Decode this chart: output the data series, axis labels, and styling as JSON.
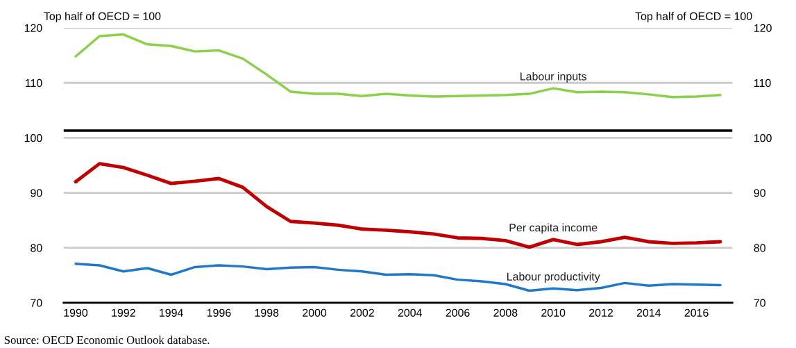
{
  "chart_data": {
    "type": "line",
    "ylabel": "Top half of OECD = 100",
    "y2label": "Top half of OECD = 100",
    "categories": [
      "1990",
      null,
      "1992",
      null,
      "1994",
      null,
      "1996",
      null,
      "1998",
      null,
      "2000",
      null,
      "2002",
      null,
      "2004",
      null,
      "2006",
      null,
      "2008",
      null,
      "2010",
      null,
      "2012",
      null,
      "2014",
      null,
      "2016",
      null
    ],
    "series": [
      {
        "name": "Labour inputs",
        "color": "#8cd04a",
        "values": [
          114.8,
          118.5,
          118.8,
          117.0,
          116.7,
          115.7,
          115.9,
          114.4,
          111.5,
          108.4,
          108.0,
          108.0,
          107.6,
          108.0,
          107.7,
          107.5,
          107.6,
          107.7,
          107.8,
          108.0,
          109.0,
          108.3,
          108.4,
          108.3,
          107.9,
          107.4,
          107.5,
          107.8
        ]
      },
      {
        "name": "Per capita income",
        "color": "#c00000",
        "values": [
          92.0,
          95.3,
          94.6,
          93.2,
          91.7,
          92.1,
          92.6,
          91.0,
          87.5,
          84.8,
          84.5,
          84.1,
          83.4,
          83.2,
          82.9,
          82.5,
          81.8,
          81.7,
          81.3,
          80.1,
          81.5,
          80.6,
          81.1,
          81.9,
          81.1,
          80.8,
          80.9,
          81.1
        ]
      },
      {
        "name": "Labour productivity",
        "color": "#1f78c8",
        "values": [
          77.1,
          76.8,
          75.7,
          76.3,
          75.1,
          76.5,
          76.8,
          76.6,
          76.1,
          76.4,
          76.5,
          76.0,
          75.7,
          75.1,
          75.2,
          75.0,
          74.2,
          73.9,
          73.4,
          72.2,
          72.6,
          72.3,
          72.7,
          73.6,
          73.1,
          73.4,
          73.3,
          73.2
        ]
      }
    ],
    "ylim": [
      70,
      120
    ],
    "yticks": [
      70,
      80,
      90,
      100,
      110,
      120
    ],
    "y2lim": [
      70,
      120
    ],
    "y2ticks": [
      70,
      80,
      90,
      100,
      110,
      120
    ],
    "ref_lines": [
      {
        "axis": "y",
        "value": 101.3,
        "color": "#000000"
      }
    ],
    "grid": "y",
    "legend": false,
    "annotations": [
      "Source: OECD Economic Outlook database."
    ]
  }
}
